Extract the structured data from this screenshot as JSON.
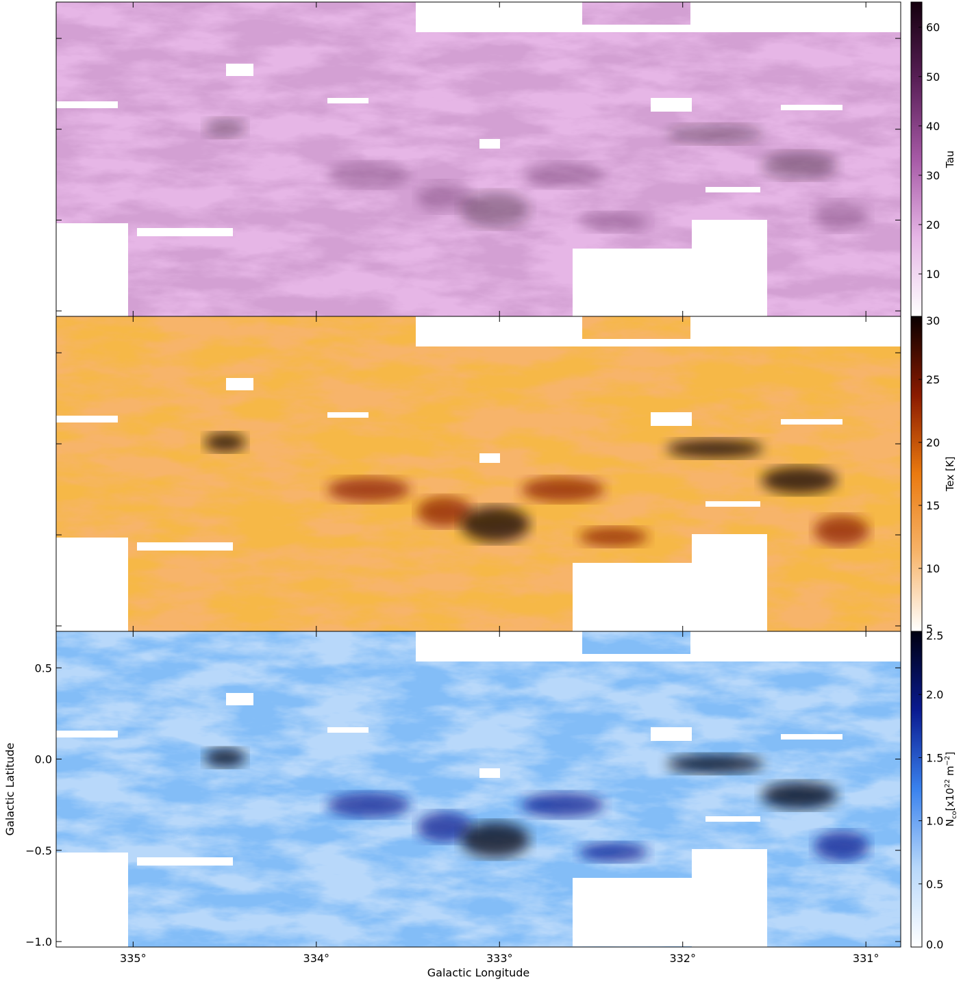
{
  "chart_data": [
    {
      "type": "heatmap",
      "xlim": [
        335.42,
        330.81
      ],
      "ylim": [
        -1.03,
        0.7
      ],
      "xticks": [
        335,
        334,
        333,
        332,
        331
      ],
      "yticks": [
        0.5,
        0,
        -0.5,
        -1
      ],
      "colorbar": {
        "label": [
          "Tau"
        ],
        "lim": [
          1.4,
          65.1
        ],
        "ticks": [
          10,
          20,
          30,
          40,
          50,
          60
        ],
        "colors": [
          "#ffffff",
          "#e6b6e6",
          "#a65aa6",
          "#5a2058",
          "#14000e"
        ]
      }
    },
    {
      "type": "heatmap",
      "xlim": [
        335.42,
        330.81
      ],
      "ylim": [
        -1.03,
        0.7
      ],
      "xticks": [
        335,
        334,
        333,
        332,
        331
      ],
      "yticks": [
        0.5,
        0,
        -0.5,
        -1
      ],
      "colorbar": {
        "label": [
          "Tex [K]"
        ],
        "lim": [
          5,
          30
        ],
        "ticks": [
          5,
          10,
          15,
          20,
          25,
          30
        ],
        "colors": [
          "#ffffff",
          "#f7b46a",
          "#ea7a10",
          "#8a1a00",
          "#0a0000"
        ]
      }
    },
    {
      "type": "heatmap",
      "xlim": [
        335.42,
        330.81
      ],
      "ylim": [
        -1.03,
        0.7
      ],
      "xticks": [
        {
          "value": 335,
          "label": "335°"
        },
        {
          "value": 334,
          "label": "334°"
        },
        {
          "value": 333,
          "label": "333°"
        },
        {
          "value": 332,
          "label": "332°"
        },
        {
          "value": 331,
          "label": "331°"
        }
      ],
      "yticks": [
        0.5,
        {
          "value": 0,
          "label": "0.0"
        },
        {
          "value": -0.5,
          "label": "−0.5"
        },
        {
          "value": -1,
          "label": "−1.0"
        }
      ],
      "xlabel": "Galactic Longitude",
      "ylabel": "Galactic Latitude",
      "colorbar": {
        "label": [
          "N",
          "co",
          "[x10",
          "22",
          " m",
          "−2",
          "]"
        ],
        "lim": [
          0,
          2.5
        ],
        "ticks": [
          {
            "value": 0,
            "label": "0.0"
          },
          0.5,
          {
            "value": 1,
            "label": "1.0"
          },
          1.5,
          {
            "value": 2,
            "label": "2.0"
          },
          2.5
        ],
        "colors": [
          "#ffffff",
          "#b8d8fa",
          "#3a82ee",
          "#0a1a90",
          "#000010"
        ]
      }
    }
  ]
}
